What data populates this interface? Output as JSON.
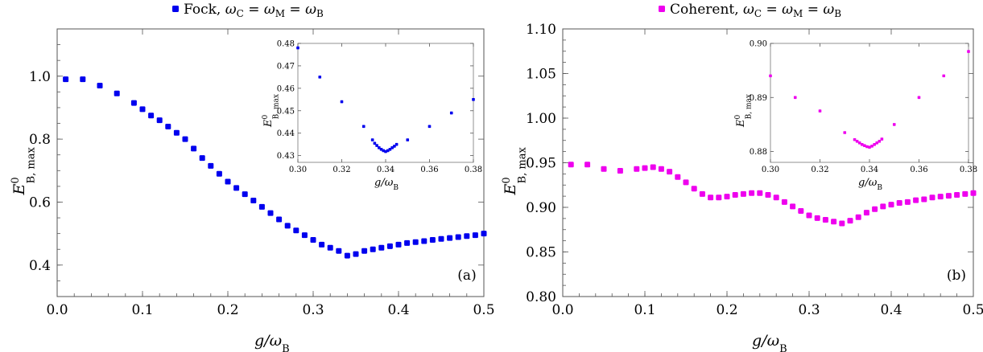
{
  "chart_data": [
    {
      "type": "scatter",
      "panel_label": "(a)",
      "legend": "Fock,  ωC = ωM = ωB",
      "color": "#0000ee",
      "xlabel": "g/ωB",
      "ylabel": "E0B, max",
      "xlim": [
        0,
        0.5
      ],
      "ylim": [
        0.3,
        1.15
      ],
      "xticks": [
        "0.0",
        "0.1",
        "0.2",
        "0.3",
        "0.4",
        "0.5"
      ],
      "xtick_values": [
        0,
        0.1,
        0.2,
        0.3,
        0.4,
        0.5
      ],
      "yticks": [
        "0.4",
        "0.6",
        "0.8",
        "1.0"
      ],
      "ytick_values": [
        0.4,
        0.6,
        0.8,
        1.0
      ],
      "x": [
        0.01,
        0.03,
        0.05,
        0.07,
        0.09,
        0.1,
        0.11,
        0.12,
        0.13,
        0.14,
        0.15,
        0.16,
        0.17,
        0.18,
        0.19,
        0.2,
        0.21,
        0.22,
        0.23,
        0.24,
        0.25,
        0.26,
        0.27,
        0.28,
        0.29,
        0.3,
        0.31,
        0.32,
        0.33,
        0.34,
        0.35,
        0.36,
        0.37,
        0.38,
        0.39,
        0.4,
        0.41,
        0.42,
        0.43,
        0.44,
        0.45,
        0.46,
        0.47,
        0.48,
        0.49,
        0.5
      ],
      "y": [
        0.99,
        0.99,
        0.97,
        0.945,
        0.915,
        0.895,
        0.875,
        0.86,
        0.84,
        0.82,
        0.8,
        0.77,
        0.74,
        0.715,
        0.69,
        0.665,
        0.645,
        0.625,
        0.605,
        0.585,
        0.565,
        0.545,
        0.525,
        0.51,
        0.495,
        0.48,
        0.465,
        0.455,
        0.445,
        0.43,
        0.435,
        0.445,
        0.45,
        0.455,
        0.46,
        0.465,
        0.47,
        0.473,
        0.476,
        0.48,
        0.483,
        0.486,
        0.489,
        0.492,
        0.495,
        0.5
      ],
      "inset": {
        "xlim": [
          0.3,
          0.38
        ],
        "ylim": [
          0.427,
          0.48
        ],
        "xticks": [
          "0.30",
          "0.32",
          "0.34",
          "0.36",
          "0.38"
        ],
        "xtick_values": [
          0.3,
          0.32,
          0.34,
          0.36,
          0.38
        ],
        "yticks": [
          "0.43",
          "0.44",
          "0.45",
          "0.46",
          "0.47",
          "0.48"
        ],
        "ytick_values": [
          0.43,
          0.44,
          0.45,
          0.46,
          0.47,
          0.48
        ],
        "xlabel": "g/ωB",
        "ylabel": "E0B, max",
        "x": [
          0.3,
          0.31,
          0.32,
          0.33,
          0.334,
          0.335,
          0.336,
          0.337,
          0.338,
          0.339,
          0.34,
          0.341,
          0.342,
          0.343,
          0.344,
          0.345,
          0.35,
          0.36,
          0.37,
          0.38
        ],
        "y": [
          0.478,
          0.465,
          0.454,
          0.443,
          0.437,
          0.4355,
          0.4345,
          0.4335,
          0.4328,
          0.4322,
          0.4318,
          0.4322,
          0.4328,
          0.4335,
          0.4342,
          0.435,
          0.437,
          0.443,
          0.449,
          0.455
        ]
      }
    },
    {
      "type": "scatter",
      "panel_label": "(b)",
      "legend": "Coherent,  ωC = ωM = ωB",
      "color": "#ee00ee",
      "xlabel": "g/ωB",
      "ylabel": "E0B, max",
      "xlim": [
        0,
        0.5
      ],
      "ylim": [
        0.8,
        1.1
      ],
      "xticks": [
        "0.0",
        "0.1",
        "0.2",
        "0.3",
        "0.4",
        "0.5"
      ],
      "xtick_values": [
        0,
        0.1,
        0.2,
        0.3,
        0.4,
        0.5
      ],
      "yticks": [
        "0.80",
        "0.85",
        "0.90",
        "0.95",
        "1.00",
        "1.05",
        "1.10"
      ],
      "ytick_values": [
        0.8,
        0.85,
        0.9,
        0.95,
        1.0,
        1.05,
        1.1
      ],
      "x": [
        0.01,
        0.03,
        0.05,
        0.07,
        0.09,
        0.1,
        0.11,
        0.12,
        0.13,
        0.14,
        0.15,
        0.16,
        0.17,
        0.18,
        0.19,
        0.2,
        0.21,
        0.22,
        0.23,
        0.24,
        0.25,
        0.26,
        0.27,
        0.28,
        0.29,
        0.3,
        0.31,
        0.32,
        0.33,
        0.34,
        0.35,
        0.36,
        0.37,
        0.38,
        0.39,
        0.4,
        0.41,
        0.42,
        0.43,
        0.44,
        0.45,
        0.46,
        0.47,
        0.48,
        0.49,
        0.5
      ],
      "y": [
        0.948,
        0.948,
        0.943,
        0.941,
        0.943,
        0.944,
        0.945,
        0.943,
        0.94,
        0.934,
        0.928,
        0.921,
        0.915,
        0.911,
        0.911,
        0.912,
        0.914,
        0.915,
        0.916,
        0.916,
        0.914,
        0.911,
        0.906,
        0.901,
        0.896,
        0.891,
        0.888,
        0.886,
        0.884,
        0.882,
        0.885,
        0.889,
        0.894,
        0.898,
        0.901,
        0.903,
        0.905,
        0.906,
        0.908,
        0.909,
        0.911,
        0.912,
        0.913,
        0.914,
        0.915,
        0.916
      ],
      "inset": {
        "xlim": [
          0.3,
          0.38
        ],
        "ylim": [
          0.878,
          0.9
        ],
        "xticks": [
          "0.30",
          "0.32",
          "0.34",
          "0.36",
          "0.38"
        ],
        "xtick_values": [
          0.3,
          0.32,
          0.34,
          0.36,
          0.38
        ],
        "yticks": [
          "0.88",
          "0.89",
          "0.90"
        ],
        "ytick_values": [
          0.88,
          0.89,
          0.9
        ],
        "xlabel": "g/ωB",
        "ylabel": "E0B, max",
        "x": [
          0.3,
          0.31,
          0.32,
          0.33,
          0.334,
          0.335,
          0.336,
          0.337,
          0.338,
          0.339,
          0.34,
          0.341,
          0.342,
          0.343,
          0.344,
          0.345,
          0.35,
          0.36,
          0.37,
          0.38
        ],
        "y": [
          0.894,
          0.89,
          0.8875,
          0.8835,
          0.8822,
          0.8819,
          0.8816,
          0.8813,
          0.8811,
          0.8809,
          0.8808,
          0.881,
          0.8813,
          0.8816,
          0.8819,
          0.8823,
          0.885,
          0.89,
          0.894,
          0.8985
        ]
      }
    }
  ]
}
